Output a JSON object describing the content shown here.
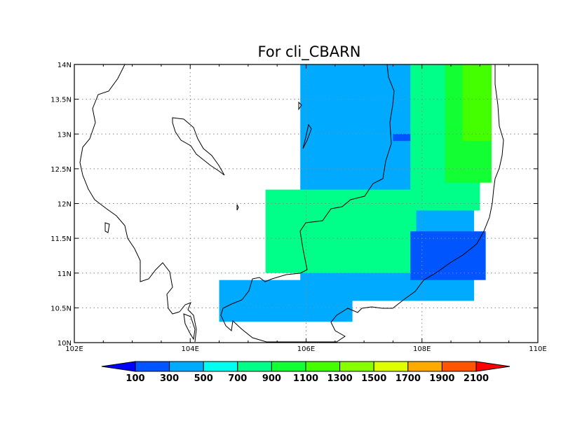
{
  "title": "For cli_CBARN",
  "chart_data": {
    "type": "heatmap",
    "title": "For cli_CBARN",
    "xlim": [
      102,
      110
    ],
    "ylim": [
      10,
      14
    ],
    "x_ticks": [
      "102E",
      "104E",
      "106E",
      "108E",
      "110E"
    ],
    "y_ticks": [
      "10N",
      "10.5N",
      "11N",
      "11.5N",
      "12N",
      "12.5N",
      "13N",
      "13.5N",
      "14N"
    ],
    "grid": "dotted",
    "colorbar": {
      "position": "bottom",
      "levels": [
        "100",
        "300",
        "500",
        "700",
        "900",
        "1100",
        "1300",
        "1500",
        "1700",
        "1900",
        "2100"
      ],
      "colors": [
        "#0000ff",
        "#0055ff",
        "#00aaff",
        "#00ffee",
        "#00ff88",
        "#11ff33",
        "#44ff00",
        "#88ff00",
        "#ddff00",
        "#ffaa00",
        "#ff5500",
        "#ff0000"
      ]
    },
    "regions": [
      {
        "class": 2,
        "lon": [
          104.5,
          106.8
        ],
        "lat": [
          10.3,
          10.9
        ]
      },
      {
        "class": 2,
        "lon": [
          105.9,
          108.9
        ],
        "lat": [
          10.6,
          14.0
        ]
      },
      {
        "class": 4,
        "lon": [
          105.3,
          107.9
        ],
        "lat": [
          11.0,
          12.2
        ]
      },
      {
        "class": 4,
        "lon": [
          107.8,
          109.0
        ],
        "lat": [
          11.9,
          14.0
        ]
      },
      {
        "class": 5,
        "lon": [
          108.4,
          109.2
        ],
        "lat": [
          12.3,
          14.0
        ]
      },
      {
        "class": 6,
        "lon": [
          108.7,
          109.2
        ],
        "lat": [
          12.9,
          14.0
        ]
      },
      {
        "class": 1,
        "lon": [
          107.8,
          109.1
        ],
        "lat": [
          10.9,
          11.6
        ]
      },
      {
        "class": 1,
        "lon": [
          107.5,
          107.8
        ],
        "lat": [
          12.9,
          13.0
        ]
      }
    ]
  }
}
